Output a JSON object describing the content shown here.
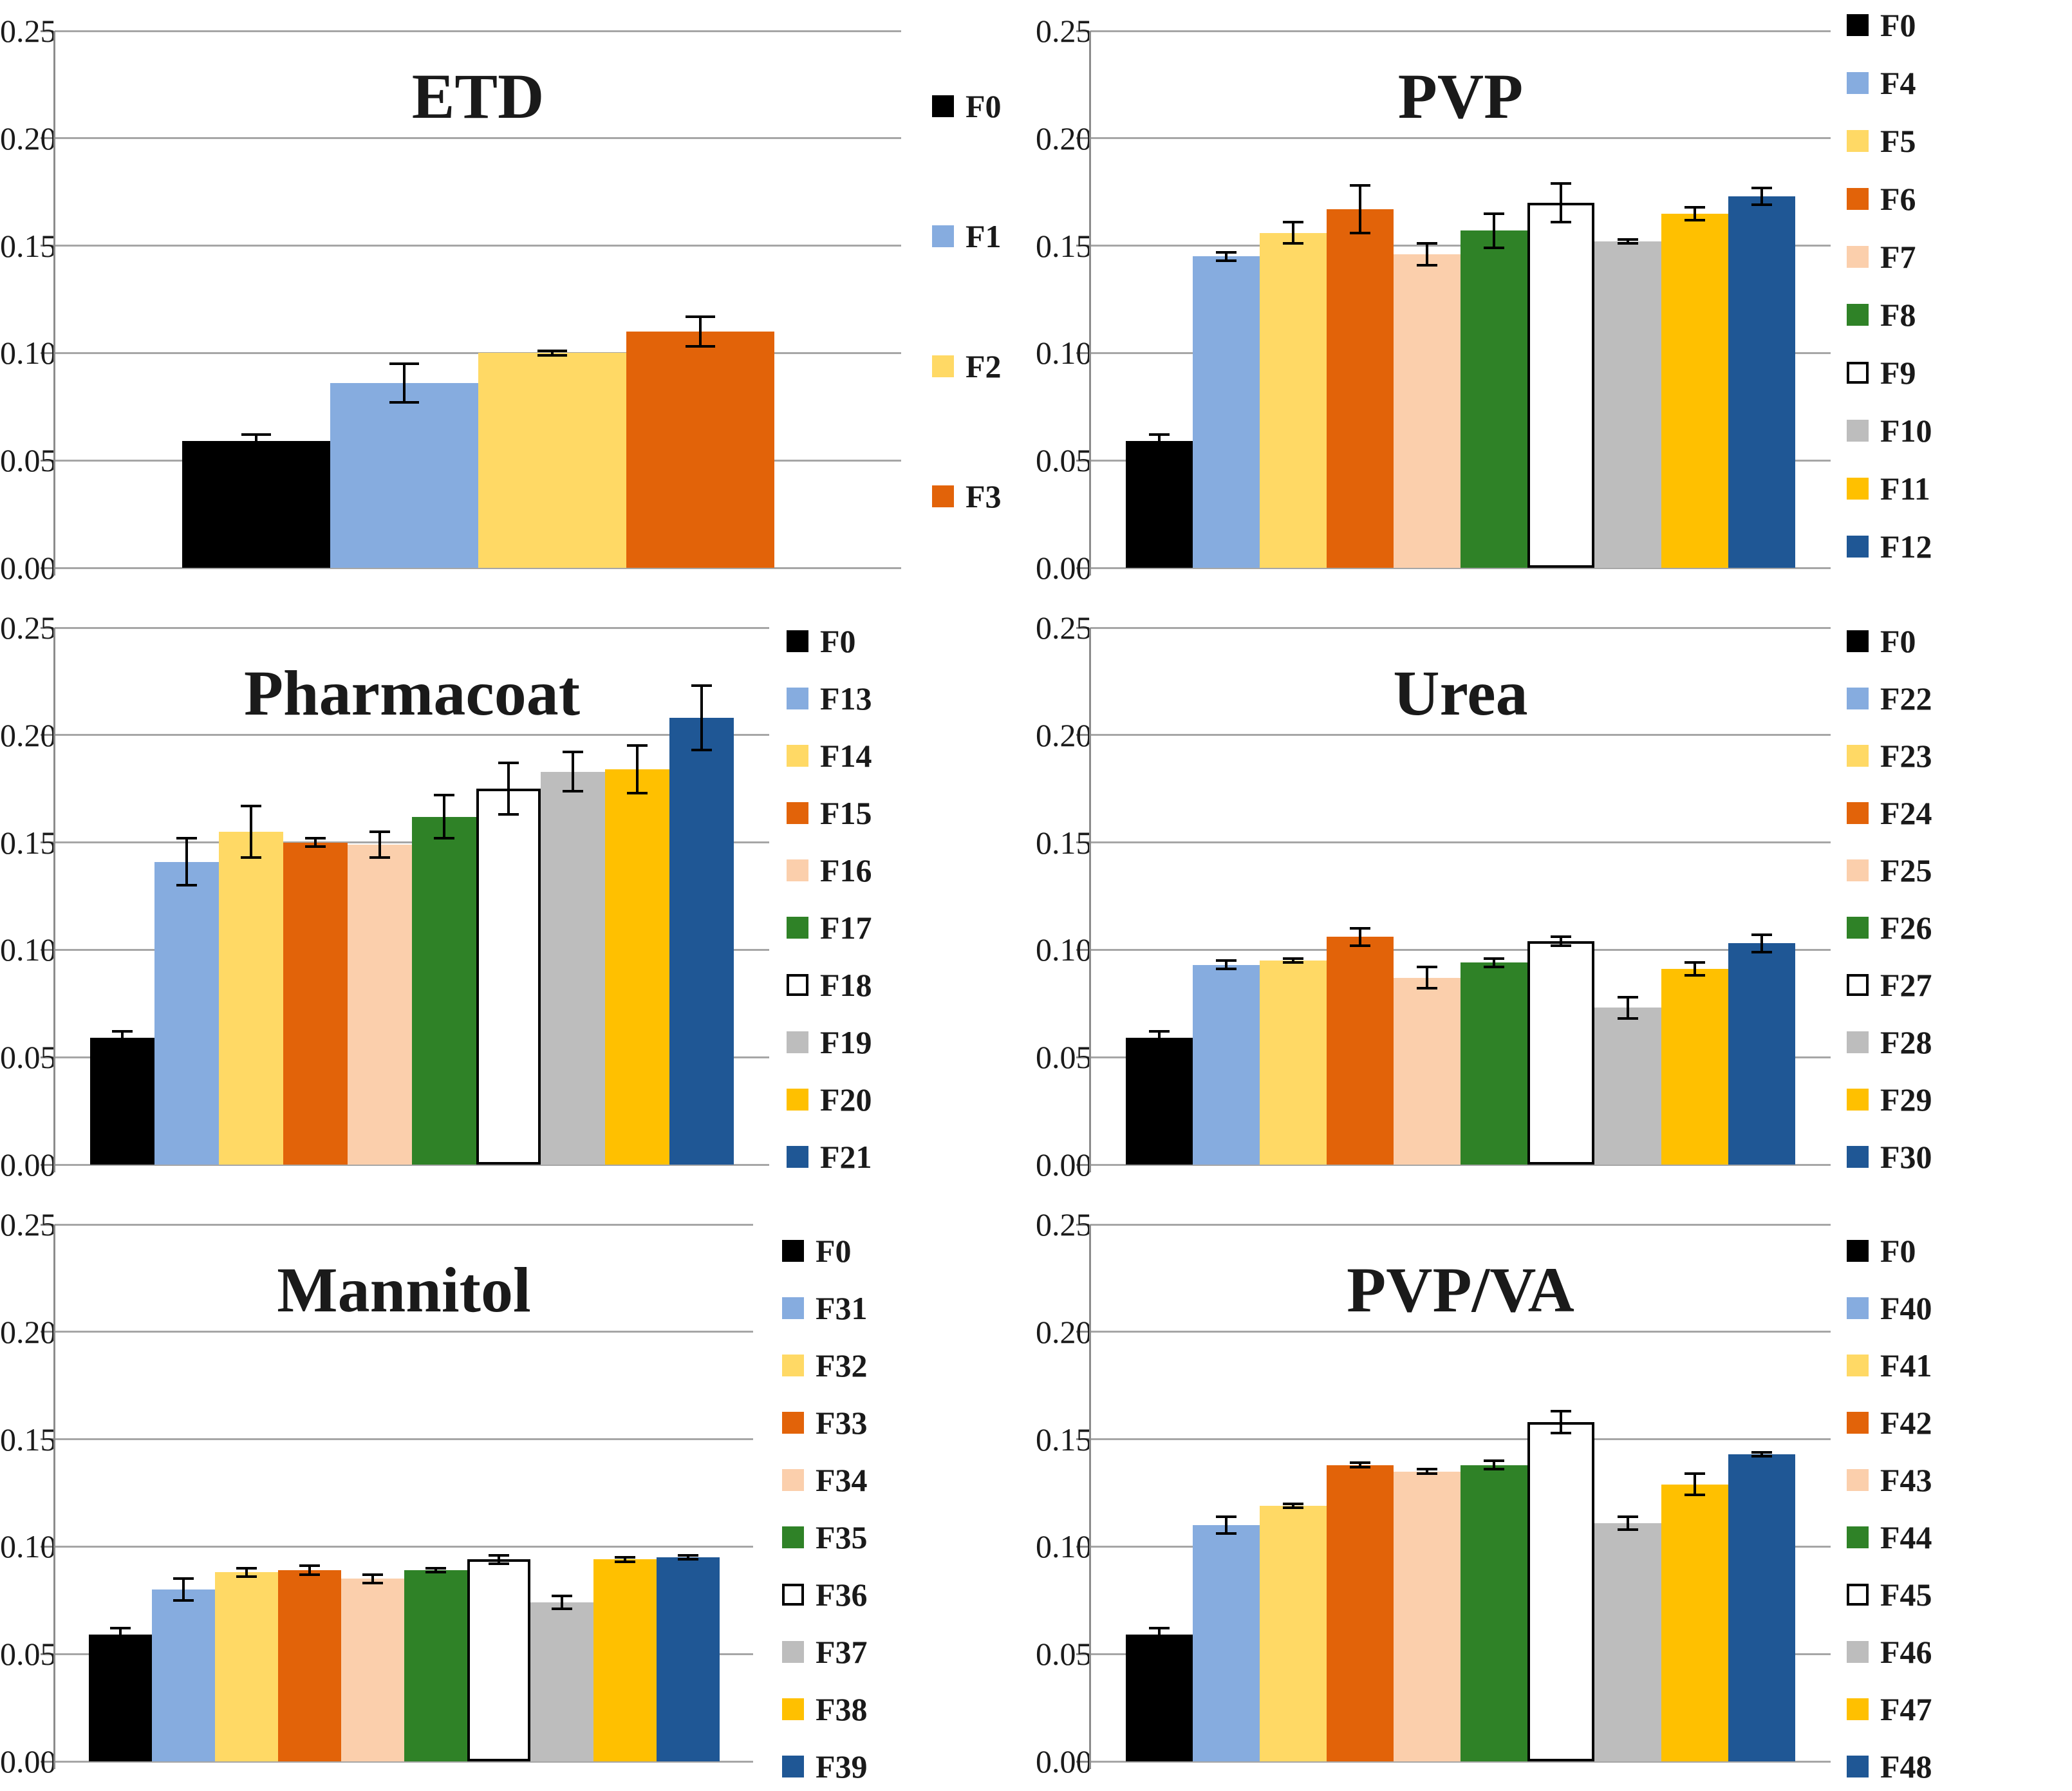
{
  "figure": {
    "background": "#FFFFFF",
    "description": "Six bar charts comparing formulations against control F0"
  },
  "palette": {
    "black": "#000000",
    "blue": "#86ACDF",
    "yellow": "#FFD965",
    "orange": "#E26309",
    "peach": "#FBCFAC",
    "green": "#2F8227",
    "white": "#FFFFFF",
    "gray": "#BDBDBD",
    "gold": "#FFC000",
    "navy": "#1F5795"
  },
  "chart_data": [
    {
      "type": "bar",
      "title": "ETD",
      "xlabel": "",
      "ylabel": "",
      "ylim": [
        0,
        0.25
      ],
      "ytick_step": 0.05,
      "grid": true,
      "error_bars": true,
      "legend_position": "right",
      "yticks": [
        "0.00",
        "0.05",
        "0.10",
        "0.15",
        "0.20",
        "0.25"
      ],
      "series": [
        {
          "label": "F0",
          "color": "black",
          "value": 0.059,
          "error": 0.003
        },
        {
          "label": "F1",
          "color": "blue",
          "value": 0.086,
          "error": 0.009
        },
        {
          "label": "F2",
          "color": "yellow",
          "value": 0.1,
          "error": 0.001
        },
        {
          "label": "F3",
          "color": "orange",
          "value": 0.11,
          "error": 0.007
        }
      ]
    },
    {
      "type": "bar",
      "title": "PVP",
      "xlabel": "",
      "ylabel": "",
      "ylim": [
        0,
        0.25
      ],
      "ytick_step": 0.05,
      "grid": true,
      "error_bars": true,
      "legend_position": "right",
      "yticks": [
        "0.00",
        "0.05",
        "0.10",
        "0.15",
        "0.20",
        "0.25"
      ],
      "series": [
        {
          "label": "F0",
          "color": "black",
          "value": 0.059,
          "error": 0.003
        },
        {
          "label": "F4",
          "color": "blue",
          "value": 0.145,
          "error": 0.002
        },
        {
          "label": "F5",
          "color": "yellow",
          "value": 0.156,
          "error": 0.005
        },
        {
          "label": "F6",
          "color": "orange",
          "value": 0.167,
          "error": 0.011
        },
        {
          "label": "F7",
          "color": "peach",
          "value": 0.146,
          "error": 0.005
        },
        {
          "label": "F8",
          "color": "green",
          "value": 0.157,
          "error": 0.008
        },
        {
          "label": "F9",
          "color": "white",
          "value": 0.17,
          "error": 0.009
        },
        {
          "label": "F10",
          "color": "gray",
          "value": 0.152,
          "error": 0.001
        },
        {
          "label": "F11",
          "color": "gold",
          "value": 0.165,
          "error": 0.003
        },
        {
          "label": "F12",
          "color": "navy",
          "value": 0.173,
          "error": 0.004
        }
      ]
    },
    {
      "type": "bar",
      "title": "Pharmacoat",
      "xlabel": "",
      "ylabel": "",
      "ylim": [
        0,
        0.25
      ],
      "ytick_step": 0.05,
      "grid": true,
      "error_bars": true,
      "legend_position": "right",
      "yticks": [
        "0.00",
        "0.05",
        "0.10",
        "0.15",
        "0.20",
        "0.25"
      ],
      "series": [
        {
          "label": "F0",
          "color": "black",
          "value": 0.059,
          "error": 0.003
        },
        {
          "label": "F13",
          "color": "blue",
          "value": 0.141,
          "error": 0.011
        },
        {
          "label": "F14",
          "color": "yellow",
          "value": 0.155,
          "error": 0.012
        },
        {
          "label": "F15",
          "color": "orange",
          "value": 0.15,
          "error": 0.002
        },
        {
          "label": "F16",
          "color": "peach",
          "value": 0.149,
          "error": 0.006
        },
        {
          "label": "F17",
          "color": "green",
          "value": 0.162,
          "error": 0.01
        },
        {
          "label": "F18",
          "color": "white",
          "value": 0.175,
          "error": 0.012
        },
        {
          "label": "F19",
          "color": "gray",
          "value": 0.183,
          "error": 0.009
        },
        {
          "label": "F20",
          "color": "gold",
          "value": 0.184,
          "error": 0.011
        },
        {
          "label": "F21",
          "color": "navy",
          "value": 0.208,
          "error": 0.015
        }
      ]
    },
    {
      "type": "bar",
      "title": "Urea",
      "xlabel": "",
      "ylabel": "",
      "ylim": [
        0,
        0.25
      ],
      "ytick_step": 0.05,
      "grid": true,
      "error_bars": true,
      "legend_position": "right",
      "yticks": [
        "0.00",
        "0.05",
        "0.10",
        "0.15",
        "0.20",
        "0.25"
      ],
      "series": [
        {
          "label": "F0",
          "color": "black",
          "value": 0.059,
          "error": 0.003
        },
        {
          "label": "F22",
          "color": "blue",
          "value": 0.093,
          "error": 0.002
        },
        {
          "label": "F23",
          "color": "yellow",
          "value": 0.095,
          "error": 0.001
        },
        {
          "label": "F24",
          "color": "orange",
          "value": 0.106,
          "error": 0.004
        },
        {
          "label": "F25",
          "color": "peach",
          "value": 0.087,
          "error": 0.005
        },
        {
          "label": "F26",
          "color": "green",
          "value": 0.094,
          "error": 0.002
        },
        {
          "label": "F27",
          "color": "white",
          "value": 0.104,
          "error": 0.002
        },
        {
          "label": "F28",
          "color": "gray",
          "value": 0.073,
          "error": 0.005
        },
        {
          "label": "F29",
          "color": "gold",
          "value": 0.091,
          "error": 0.003
        },
        {
          "label": "F30",
          "color": "navy",
          "value": 0.103,
          "error": 0.004
        }
      ]
    },
    {
      "type": "bar",
      "title": "Mannitol",
      "xlabel": "",
      "ylabel": "",
      "ylim": [
        0,
        0.25
      ],
      "ytick_step": 0.05,
      "grid": true,
      "error_bars": true,
      "legend_position": "right",
      "yticks": [
        "0.00",
        "0.05",
        "0.10",
        "0.15",
        "0.20",
        "0.25"
      ],
      "series": [
        {
          "label": "F0",
          "color": "black",
          "value": 0.059,
          "error": 0.003
        },
        {
          "label": "F31",
          "color": "blue",
          "value": 0.08,
          "error": 0.005
        },
        {
          "label": "F32",
          "color": "yellow",
          "value": 0.088,
          "error": 0.002
        },
        {
          "label": "F33",
          "color": "orange",
          "value": 0.089,
          "error": 0.002
        },
        {
          "label": "F34",
          "color": "peach",
          "value": 0.085,
          "error": 0.002
        },
        {
          "label": "F35",
          "color": "green",
          "value": 0.089,
          "error": 0.001
        },
        {
          "label": "F36",
          "color": "white",
          "value": 0.094,
          "error": 0.002
        },
        {
          "label": "F37",
          "color": "gray",
          "value": 0.074,
          "error": 0.003
        },
        {
          "label": "F38",
          "color": "gold",
          "value": 0.094,
          "error": 0.001
        },
        {
          "label": "F39",
          "color": "navy",
          "value": 0.095,
          "error": 0.001
        }
      ]
    },
    {
      "type": "bar",
      "title": "PVP/VA",
      "xlabel": "",
      "ylabel": "",
      "ylim": [
        0,
        0.25
      ],
      "ytick_step": 0.05,
      "grid": true,
      "error_bars": true,
      "legend_position": "right",
      "yticks": [
        "0.00",
        "0.05",
        "0.10",
        "0.15",
        "0.20",
        "0.25"
      ],
      "series": [
        {
          "label": "F0",
          "color": "black",
          "value": 0.059,
          "error": 0.003
        },
        {
          "label": "F40",
          "color": "blue",
          "value": 0.11,
          "error": 0.004
        },
        {
          "label": "F41",
          "color": "yellow",
          "value": 0.119,
          "error": 0.001
        },
        {
          "label": "F42",
          "color": "orange",
          "value": 0.138,
          "error": 0.001
        },
        {
          "label": "F43",
          "color": "peach",
          "value": 0.135,
          "error": 0.001
        },
        {
          "label": "F44",
          "color": "green",
          "value": 0.138,
          "error": 0.002
        },
        {
          "label": "F45",
          "color": "white",
          "value": 0.158,
          "error": 0.005
        },
        {
          "label": "F46",
          "color": "gray",
          "value": 0.111,
          "error": 0.003
        },
        {
          "label": "F47",
          "color": "gold",
          "value": 0.129,
          "error": 0.005
        },
        {
          "label": "F48",
          "color": "navy",
          "value": 0.143,
          "error": 0.001
        }
      ]
    }
  ]
}
